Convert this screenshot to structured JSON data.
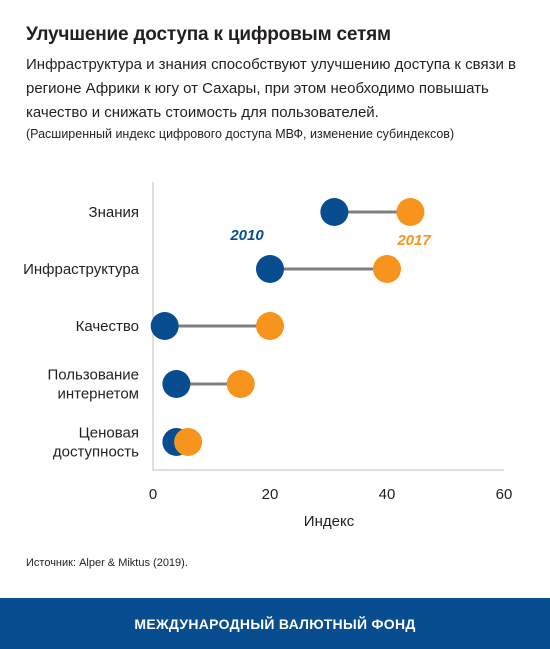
{
  "header": {
    "title": "Улучшение доступа к цифровым сетям",
    "subtitle": "Инфраструктура и знания способствуют улучшению доступа к связи в регионе Африки к югу от Сахары, при этом необходимо повышать качество и снижать стоимость для пользователей.",
    "note": "(Расширенный индекс цифрового доступа МВФ, изменение субиндексов)"
  },
  "chart_data": {
    "type": "dumbbell",
    "categories": [
      [
        "Знания"
      ],
      [
        "Инфраструктура"
      ],
      [
        "Качество"
      ],
      [
        "Пользование",
        "интернетом"
      ],
      [
        "Ценовая",
        "доступность"
      ]
    ],
    "series": [
      {
        "name": "2010",
        "color": "#074d8f",
        "values": [
          31,
          20,
          2,
          4,
          4
        ]
      },
      {
        "name": "2017",
        "color": "#f7941d",
        "values": [
          44,
          40,
          20,
          15,
          6
        ]
      }
    ],
    "xlabel": "Индекс",
    "xlim": [
      0,
      60
    ],
    "xticks": [
      "0",
      "20",
      "40",
      "60"
    ],
    "connector_color": "#7f7f7f",
    "legend_placement": "inline, near top rows"
  },
  "source": "Источник: Alper & Miktus (2019).",
  "footer": {
    "label": "МЕЖДУНАРОДНЫЙ ВАЛЮТНЫЙ ФОНД"
  }
}
